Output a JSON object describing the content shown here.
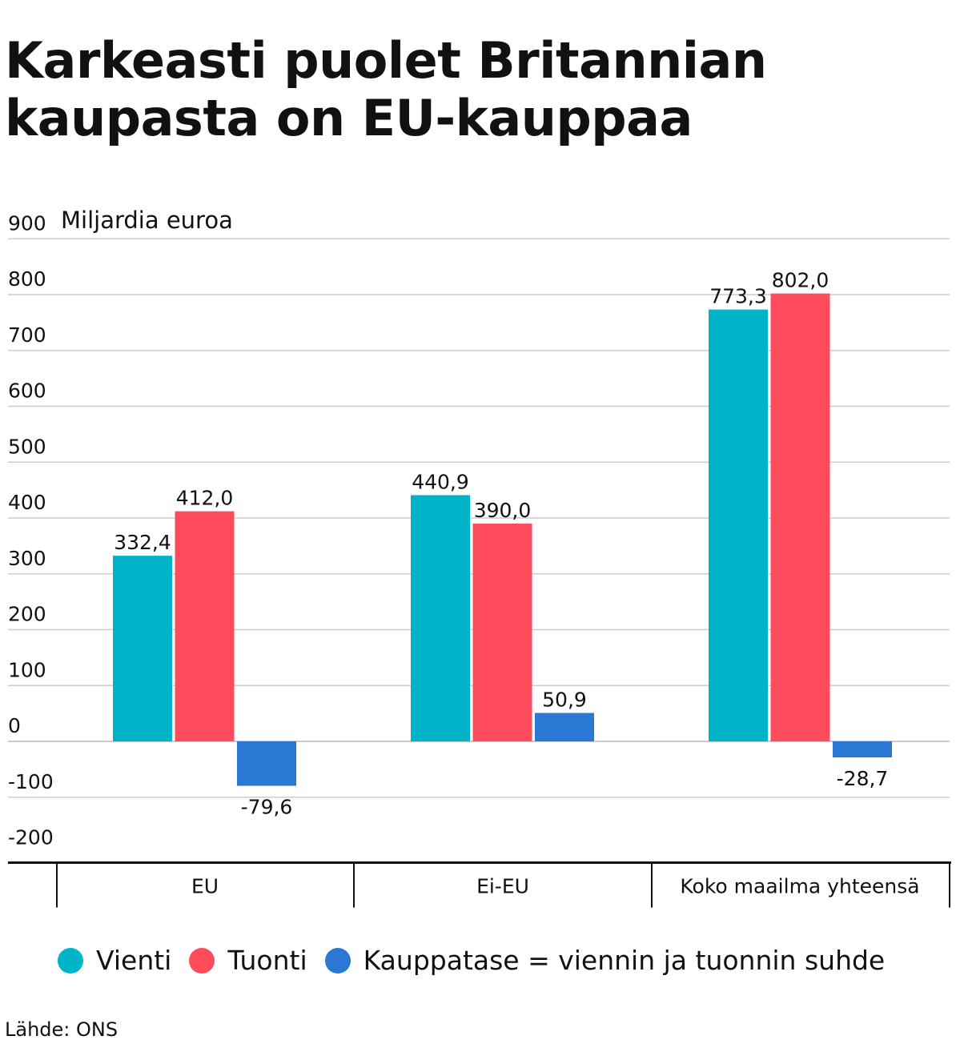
{
  "title": "Karkeasti puolet Britannian kaupasta on EU-kauppaa",
  "source": "Lähde: ONS",
  "colors": {
    "vienti": "#00b3c8",
    "tuonti": "#ff4c5d",
    "kauppatase": "#2a77d4",
    "grid": "#cccccc",
    "axis": "#111111"
  },
  "legend": [
    {
      "label": "Vienti",
      "color": "#00b3c8"
    },
    {
      "label": "Tuonti",
      "color": "#ff4c5d"
    },
    {
      "label": "Kauppatase = viennin ja tuonnin suhde",
      "color": "#2a77d4"
    }
  ],
  "chart_data": {
    "type": "bar",
    "ylabel": "Miljardia euroa",
    "ylim": [
      -200,
      900
    ],
    "yticks": [
      900,
      800,
      700,
      600,
      500,
      400,
      300,
      200,
      100,
      0,
      -100,
      -200
    ],
    "grid": true,
    "legend_position": "bottom",
    "categories": [
      "EU",
      "Ei-EU",
      "Koko maailma yhteensä"
    ],
    "series": [
      {
        "name": "Vienti",
        "values": [
          332.4,
          440.9,
          773.3
        ],
        "labels": [
          "332,4",
          "440,9",
          "773,3"
        ]
      },
      {
        "name": "Tuonti",
        "values": [
          412.0,
          390.0,
          802.0
        ],
        "labels": [
          "412,0",
          "390,0",
          "802,0"
        ]
      },
      {
        "name": "Kauppatase = viennin ja tuonnin suhde",
        "values": [
          -79.6,
          50.9,
          -28.7
        ],
        "labels": [
          "-79,6",
          "50,9",
          "-28,7"
        ]
      }
    ]
  }
}
